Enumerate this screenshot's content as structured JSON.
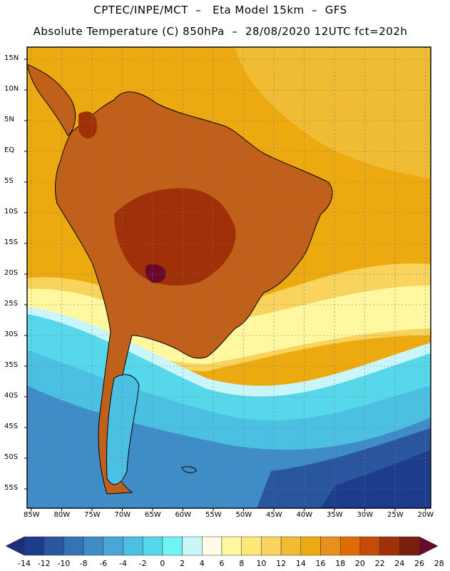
{
  "header": {
    "line1": "CPTEC/INPE/MCT  –   Eta Model 15km  –  GFS",
    "line2": "Absolute Temperature (C) 850hPa  –  28/08/2020 12UTC fct=202h"
  },
  "axes": {
    "lat_labels": [
      "15N",
      "10N",
      "5N",
      "EQ",
      "5S",
      "10S",
      "15S",
      "20S",
      "25S",
      "30S",
      "35S",
      "40S",
      "45S",
      "50S",
      "55S"
    ],
    "lon_labels": [
      "85W",
      "80W",
      "75W",
      "70W",
      "65W",
      "60W",
      "55W",
      "50W",
      "45W",
      "40W",
      "35W",
      "30W",
      "25W",
      "20W"
    ]
  },
  "colorbar": {
    "labels": [
      "-14",
      "-12",
      "-10",
      "-8",
      "-6",
      "-4",
      "-2",
      "0",
      "2",
      "4",
      "6",
      "8",
      "10",
      "12",
      "14",
      "16",
      "18",
      "20",
      "22",
      "24",
      "26",
      "28"
    ],
    "colors": [
      "#1e3c8c",
      "#2a56a0",
      "#3574b4",
      "#3f8cc6",
      "#4aa6d6",
      "#4bc0e2",
      "#56d8ea",
      "#6ff4f4",
      "#c8f6fa",
      "#fffbe6",
      "#fff8a0",
      "#fde878",
      "#f8d45c",
      "#f0bc34",
      "#ecaa10",
      "#e8901c",
      "#e06c08",
      "#c44c08",
      "#a03008",
      "#7a1e10"
    ],
    "under_color": "#1e2c7c",
    "over_color": "#6a0a2a"
  },
  "map": {
    "land_color": "#c0601a",
    "ocean_base": "#ecaa10"
  }
}
